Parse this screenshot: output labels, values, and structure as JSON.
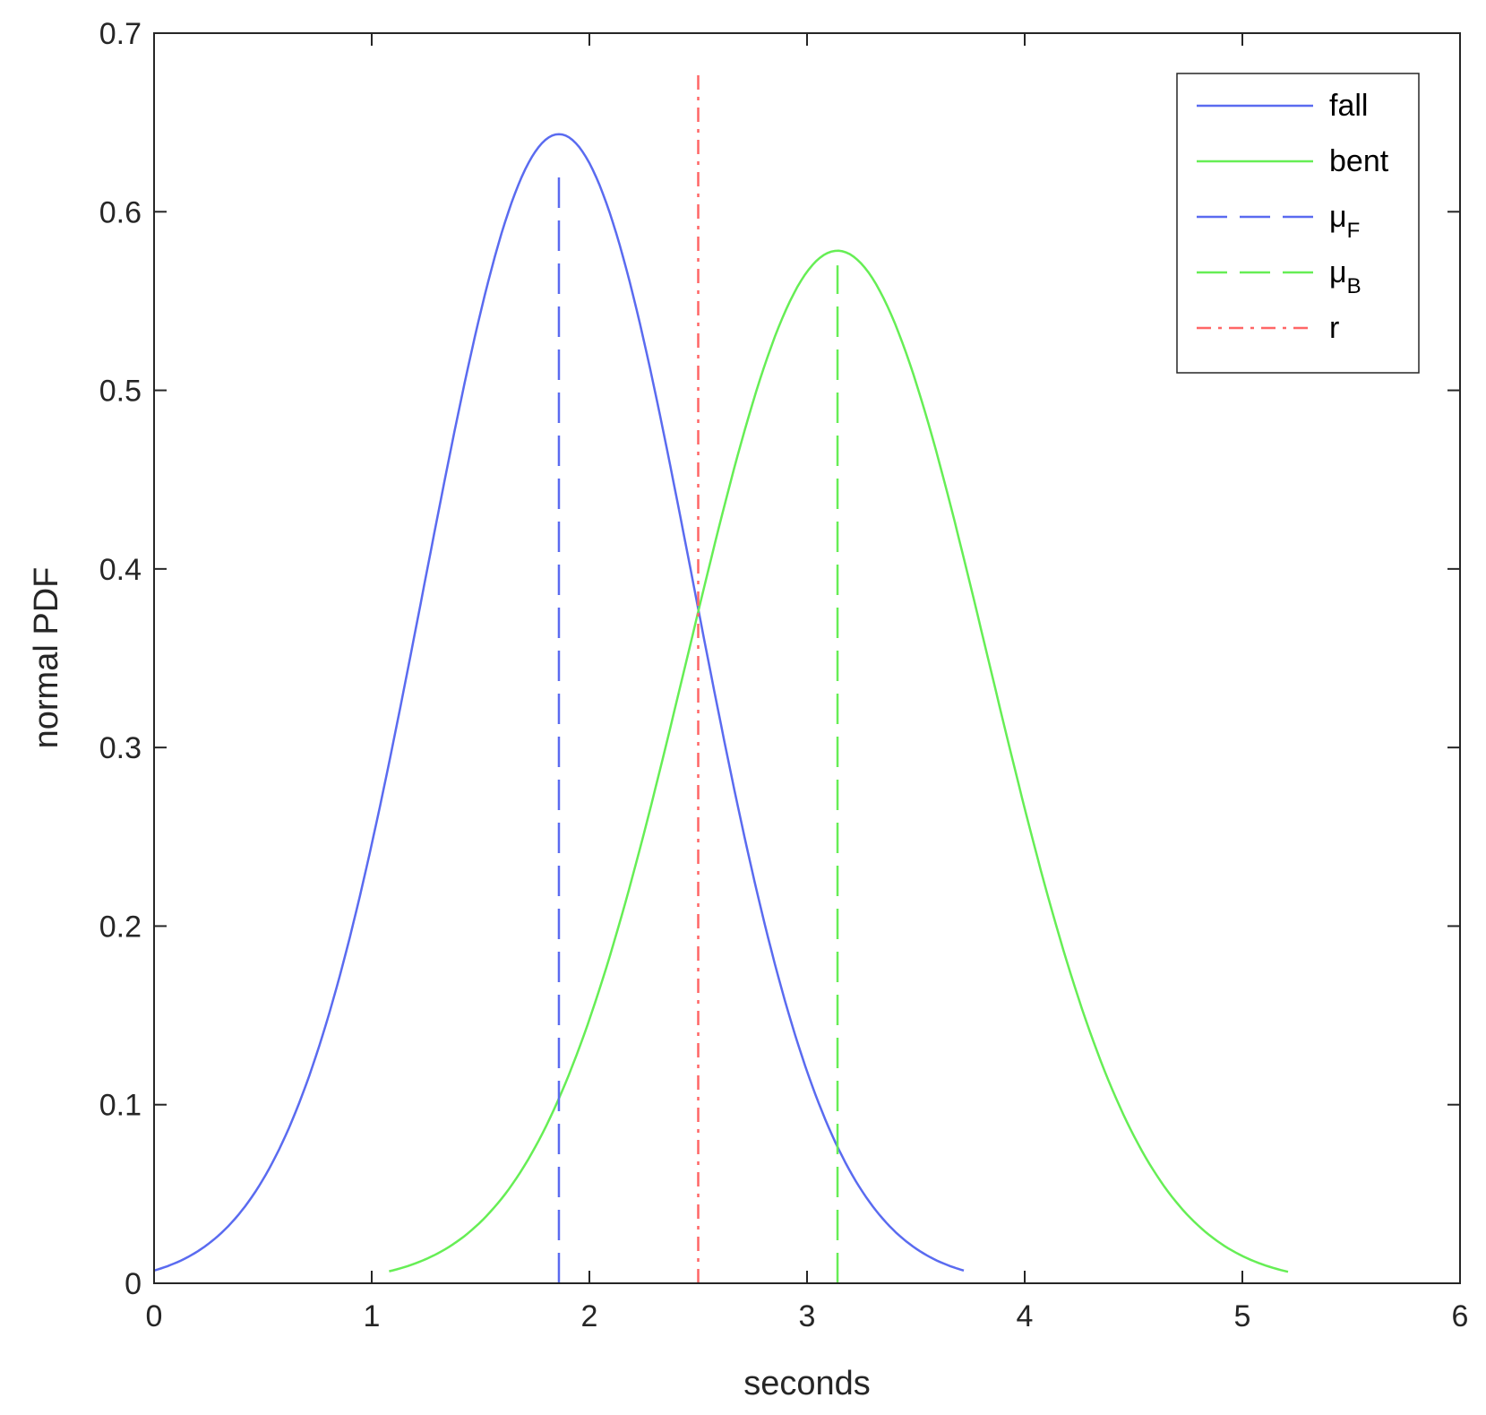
{
  "chart_data": {
    "type": "line",
    "title": "",
    "xlabel": "seconds",
    "ylabel": "normal PDF",
    "xlim": [
      0,
      6
    ],
    "ylim": [
      0,
      0.7
    ],
    "xticks": [
      "0",
      "1",
      "2",
      "3",
      "4",
      "5",
      "6"
    ],
    "yticks": [
      "0",
      "0.1",
      "0.2",
      "0.3",
      "0.4",
      "0.5",
      "0.6",
      "0.7"
    ],
    "grid": false,
    "legend_position": "top-right",
    "series": [
      {
        "name": "fall",
        "kind": "normal_pdf",
        "mean": 1.86,
        "std": 0.62,
        "x_range": [
          0,
          3.72
        ],
        "style": "solid",
        "color": "#5a6bf0"
      },
      {
        "name": "bent",
        "kind": "normal_pdf",
        "mean": 3.14,
        "std": 0.69,
        "x_range": [
          1.08,
          5.21
        ],
        "style": "solid",
        "color": "#66ee55"
      },
      {
        "name": "μ",
        "subscript": "F",
        "kind": "vline",
        "x": 1.86,
        "y_range": [
          0,
          0.62
        ],
        "style": "dashed",
        "color": "#5a6bf0"
      },
      {
        "name": "μ",
        "subscript": "B",
        "kind": "vline",
        "x": 3.14,
        "y_range": [
          0,
          0.57
        ],
        "style": "dashed",
        "color": "#66ee55"
      },
      {
        "name": "r",
        "kind": "vline",
        "x": 2.5,
        "y_range": [
          0,
          0.68
        ],
        "style": "dashdot",
        "color": "#ff6666"
      }
    ]
  }
}
